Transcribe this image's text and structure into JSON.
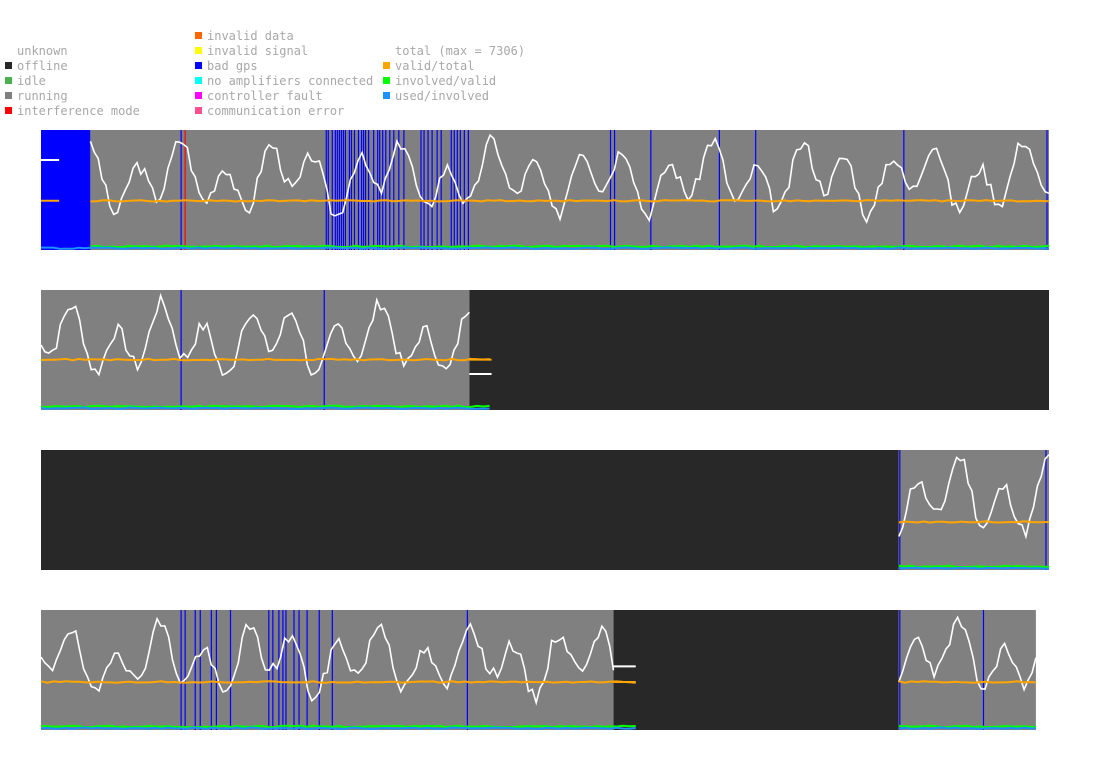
{
  "legend": {
    "states": [
      {
        "label": "unknown",
        "color": "#ffffff"
      },
      {
        "label": "offline",
        "color": "#282828"
      },
      {
        "label": "idle",
        "color": "#4caf50"
      },
      {
        "label": "running",
        "color": "#808080"
      },
      {
        "label": "interference mode",
        "color": "#ff0000"
      }
    ],
    "faults": [
      {
        "label": "invalid data",
        "color": "#ff6600"
      },
      {
        "label": "invalid signal",
        "color": "#ffff00"
      },
      {
        "label": "bad gps",
        "color": "#0000ff"
      },
      {
        "label": "no amplifiers connected",
        "color": "#00ffff"
      },
      {
        "label": "controller fault",
        "color": "#ff00ff"
      },
      {
        "label": "communication error",
        "color": "#ff4f8f"
      }
    ],
    "ratios": [
      {
        "label": "total (max = 7306)",
        "color": null
      },
      {
        "label": "valid/total",
        "color": "#ffa500"
      },
      {
        "label": "involved/valid",
        "color": "#00ff00"
      },
      {
        "label": "used/involved",
        "color": "#1e90ff"
      }
    ]
  },
  "chart_data": {
    "type": "line",
    "x_domain": [
      0,
      1
    ],
    "y_domain": [
      0,
      1
    ],
    "max_total": 7306,
    "series_colors": {
      "total": "#ffffff",
      "valid_total": "#ffa500",
      "involved_valid": "#00ff00",
      "used_involved": "#1e90ff"
    },
    "state_colors": {
      "offline": "#282828",
      "running": "#808080",
      "bad_gps": "#0000ff",
      "interference": "#ff0000"
    },
    "panels": [
      {
        "id": 1,
        "segments": [
          {
            "state": "bad_gps",
            "x0": 0.0,
            "x1": 0.049
          },
          {
            "state": "running",
            "x0": 0.049,
            "x1": 1.0
          }
        ],
        "markers": {
          "bad_gps": [
            0.139,
            0.283,
            0.285,
            0.289,
            0.292,
            0.294,
            0.296,
            0.298,
            0.3,
            0.302,
            0.306,
            0.308,
            0.311,
            0.315,
            0.318,
            0.32,
            0.322,
            0.325,
            0.33,
            0.334,
            0.336,
            0.339,
            0.342,
            0.346,
            0.35,
            0.355,
            0.36,
            0.377,
            0.38,
            0.384,
            0.388,
            0.393,
            0.397,
            0.407,
            0.41,
            0.413,
            0.416,
            0.42,
            0.424,
            0.565,
            0.569,
            0.605,
            0.673,
            0.709,
            0.856,
            0.998
          ],
          "interference": [
            0.143
          ]
        },
        "total_pct": {
          "x0": 0.049,
          "x1": 1.0,
          "base": 0.6,
          "amp": 0.2,
          "seed": 3
        },
        "valid_total": {
          "x0": 0.049,
          "x1": 1.0,
          "value": 0.41
        },
        "involved_valid": {
          "x0": 0.049,
          "x1": 1.0,
          "value": 0.03
        },
        "used_involved": {
          "x0": 0.0,
          "x1": 1.0,
          "value": 0.015
        },
        "stubs": [
          {
            "x": 0.0,
            "total": 0.75,
            "valid": 0.41
          }
        ]
      },
      {
        "id": 2,
        "segments": [
          {
            "state": "running",
            "x0": 0.0,
            "x1": 0.425
          },
          {
            "state": "offline",
            "x0": 0.425,
            "x1": 1.0
          }
        ],
        "markers": {
          "bad_gps": [
            0.139,
            0.281
          ],
          "interference": []
        },
        "total_pct": {
          "x0": 0.0,
          "x1": 0.425,
          "base": 0.58,
          "amp": 0.2,
          "seed": 7
        },
        "valid_total": {
          "x0": 0.0,
          "x1": 0.445,
          "value": 0.42
        },
        "involved_valid": {
          "x0": 0.0,
          "x1": 0.445,
          "value": 0.03
        },
        "used_involved": {
          "x0": 0.0,
          "x1": 0.445,
          "value": 0.015
        },
        "stubs": [
          {
            "x": 0.425,
            "x_end": 0.447,
            "total": 0.3,
            "valid": 0.42
          }
        ]
      },
      {
        "id": 3,
        "segments": [
          {
            "state": "offline",
            "x0": 0.0,
            "x1": 0.851
          },
          {
            "state": "running",
            "x0": 0.851,
            "x1": 1.0
          }
        ],
        "markers": {
          "bad_gps": [
            0.852,
            0.997
          ],
          "interference": []
        },
        "total_pct": {
          "x0": 0.851,
          "x1": 1.0,
          "base": 0.6,
          "amp": 0.22,
          "seed": 11
        },
        "valid_total": {
          "x0": 0.851,
          "x1": 1.0,
          "value": 0.4
        },
        "involved_valid": {
          "x0": 0.851,
          "x1": 1.0,
          "value": 0.03
        },
        "used_involved": {
          "x0": 0.851,
          "x1": 1.0,
          "value": 0.015
        },
        "stubs": []
      },
      {
        "id": 4,
        "segments": [
          {
            "state": "running",
            "x0": 0.0,
            "x1": 0.568
          },
          {
            "state": "offline",
            "x0": 0.568,
            "x1": 0.851
          },
          {
            "state": "running",
            "x0": 0.851,
            "x1": 0.987
          }
        ],
        "markers": {
          "bad_gps": [
            0.139,
            0.143,
            0.153,
            0.158,
            0.169,
            0.174,
            0.188,
            0.226,
            0.23,
            0.236,
            0.24,
            0.243,
            0.251,
            0.256,
            0.264,
            0.276,
            0.289,
            0.423,
            0.852,
            0.935
          ],
          "interference": []
        },
        "total_pct": {
          "x0": 0.0,
          "x1": 0.568,
          "base": 0.58,
          "amp": 0.2,
          "seed": 19
        },
        "total_pct_b": {
          "x0": 0.851,
          "x1": 0.987,
          "base": 0.6,
          "amp": 0.2,
          "seed": 23
        },
        "valid_total": {
          "x0": 0.0,
          "x1": 0.59,
          "value": 0.4
        },
        "valid_total_b": {
          "x0": 0.851,
          "x1": 0.987,
          "value": 0.4
        },
        "involved_valid": {
          "x0": 0.0,
          "x1": 0.59,
          "value": 0.03
        },
        "involved_valid_b": {
          "x0": 0.851,
          "x1": 0.987,
          "value": 0.03
        },
        "used_involved": {
          "x0": 0.0,
          "x1": 0.59,
          "value": 0.015
        },
        "used_involved_b": {
          "x0": 0.851,
          "x1": 0.987,
          "value": 0.015
        },
        "stubs": [
          {
            "x": 0.568,
            "x_end": 0.59,
            "total": 0.53,
            "valid": 0.4
          }
        ]
      }
    ]
  }
}
